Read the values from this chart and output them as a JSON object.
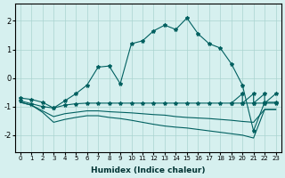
{
  "xlabel": "Humidex (Indice chaleur)",
  "ylabel": "",
  "bg_color": "#d6f0ef",
  "grid_color": "#aad4d0",
  "line_color": "#006060",
  "x_ticks": [
    0,
    1,
    2,
    3,
    4,
    5,
    6,
    7,
    8,
    9,
    10,
    11,
    12,
    13,
    14,
    15,
    16,
    17,
    18,
    19,
    20,
    21,
    22,
    23
  ],
  "y_ticks": [
    -2,
    -1,
    0,
    1,
    2
  ],
  "xlim": [
    -0.5,
    23.5
  ],
  "ylim": [
    -2.6,
    2.6
  ],
  "series1": {
    "x": [
      0,
      1,
      2,
      3,
      4,
      5,
      6,
      7,
      8,
      9,
      10,
      11,
      12,
      13,
      14,
      15,
      16,
      17,
      18,
      19,
      20,
      21,
      22,
      23
    ],
    "y": [
      -0.7,
      -0.75,
      -0.85,
      -1.05,
      -0.8,
      -0.55,
      -0.25,
      0.38,
      0.42,
      -0.2,
      1.2,
      1.3,
      1.65,
      1.85,
      1.7,
      2.1,
      1.55,
      1.2,
      1.05,
      0.5,
      -0.25,
      -1.85,
      -0.85,
      -0.85
    ],
    "has_markers": true
  },
  "series2": {
    "x": [
      0,
      1,
      2,
      3,
      4,
      5,
      6,
      7,
      8,
      9,
      10,
      11,
      12,
      13,
      14,
      15,
      16,
      17,
      18,
      19,
      20,
      21,
      22,
      23
    ],
    "y": [
      -0.8,
      -0.9,
      -1.0,
      -1.05,
      -0.95,
      -0.9,
      -0.88,
      -0.88,
      -0.88,
      -0.88,
      -0.88,
      -0.88,
      -0.88,
      -0.88,
      -0.88,
      -0.88,
      -0.88,
      -0.88,
      -0.88,
      -0.88,
      -0.88,
      -0.88,
      -0.88,
      -0.88
    ],
    "has_markers": true
  },
  "series3": {
    "x": [
      0,
      1,
      2,
      3,
      4,
      5,
      6,
      7,
      8,
      9,
      10,
      11,
      12,
      13,
      14,
      15,
      16,
      17,
      18,
      19,
      20,
      21,
      22,
      23
    ],
    "y": [
      -0.85,
      -0.95,
      -1.15,
      -1.35,
      -1.25,
      -1.2,
      -1.15,
      -1.15,
      -1.18,
      -1.2,
      -1.22,
      -1.25,
      -1.28,
      -1.3,
      -1.35,
      -1.38,
      -1.4,
      -1.42,
      -1.45,
      -1.48,
      -1.52,
      -1.55,
      -1.1,
      -1.1
    ],
    "has_markers": false
  },
  "series4": {
    "x": [
      0,
      1,
      2,
      3,
      4,
      5,
      6,
      7,
      8,
      9,
      10,
      11,
      12,
      13,
      14,
      15,
      16,
      17,
      18,
      19,
      20,
      21,
      22,
      23
    ],
    "y": [
      -0.85,
      -0.95,
      -1.2,
      -1.55,
      -1.45,
      -1.38,
      -1.32,
      -1.32,
      -1.38,
      -1.42,
      -1.48,
      -1.55,
      -1.62,
      -1.68,
      -1.72,
      -1.75,
      -1.8,
      -1.85,
      -1.9,
      -1.95,
      -2.0,
      -2.1,
      -1.1,
      -1.1
    ],
    "has_markers": false
  },
  "zigzag": {
    "x": [
      19,
      20,
      20,
      21,
      21,
      22,
      22,
      23
    ],
    "y": [
      -0.88,
      -0.55,
      -0.88,
      -0.55,
      -0.88,
      -0.55,
      -0.88,
      -0.55
    ],
    "has_markers": true
  }
}
